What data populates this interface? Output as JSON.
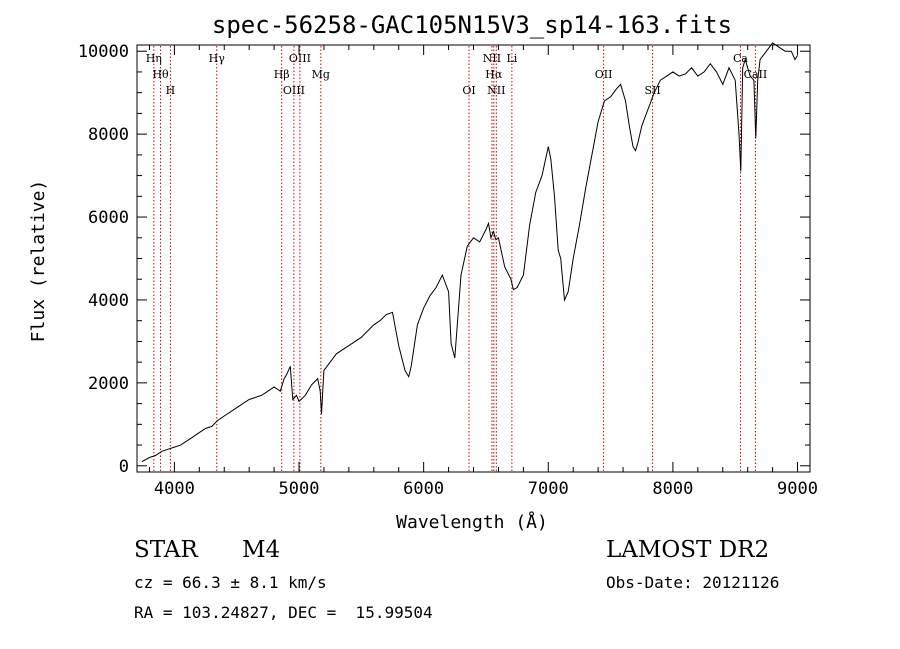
{
  "chart_data": {
    "type": "line",
    "title": "spec-56258-GAC105N15V3_sp14-163.fits",
    "xlabel": "Wavelength (Å)",
    "ylabel": "Flux (relative)",
    "xlim": [
      3700,
      9100
    ],
    "ylim": [
      -150,
      10150
    ],
    "x_ticks": [
      4000,
      5000,
      6000,
      7000,
      8000,
      9000
    ],
    "y_ticks": [
      0,
      2000,
      4000,
      6000,
      8000,
      10000
    ],
    "x_tick_labels": [
      "4000",
      "5000",
      "6000",
      "7000",
      "8000",
      "9000"
    ],
    "y_tick_labels": [
      "0",
      "2000",
      "4000",
      "6000",
      "8000",
      "10000"
    ],
    "grid": false,
    "line_color": "#000000",
    "marker_color": "#cc0000",
    "series": [
      {
        "x": [
          3740,
          3800,
          3850,
          3900,
          3950,
          4000,
          4050,
          4100,
          4150,
          4200,
          4250,
          4300,
          4350,
          4400,
          4450,
          4500,
          4550,
          4600,
          4650,
          4700,
          4750,
          4800,
          4850,
          4880,
          4900,
          4930,
          4950,
          4980,
          5000,
          5050,
          5100,
          5150,
          5170,
          5180,
          5200,
          5250,
          5300,
          5350,
          5400,
          5450,
          5500,
          5550,
          5600,
          5650,
          5700,
          5750,
          5800,
          5850,
          5880,
          5900,
          5950,
          6000,
          6050,
          6100,
          6150,
          6200,
          6220,
          6250,
          6300,
          6350,
          6400,
          6450,
          6500,
          6520,
          6540,
          6560,
          6580,
          6600,
          6650,
          6700,
          6720,
          6750,
          6800,
          6850,
          6900,
          6950,
          7000,
          7020,
          7050,
          7080,
          7100,
          7130,
          7160,
          7200,
          7250,
          7300,
          7350,
          7400,
          7450,
          7500,
          7550,
          7580,
          7620,
          7650,
          7680,
          7700,
          7720,
          7750,
          7800,
          7850,
          7900,
          7950,
          8000,
          8050,
          8100,
          8150,
          8200,
          8250,
          8300,
          8350,
          8400,
          8450,
          8500,
          8530,
          8545,
          8560,
          8580,
          8620,
          8650,
          8665,
          8680,
          8700,
          8750,
          8800,
          8850,
          8900,
          8950,
          8980,
          9000
        ],
        "y": [
          100,
          200,
          250,
          350,
          400,
          450,
          500,
          600,
          700,
          800,
          900,
          950,
          1100,
          1200,
          1300,
          1400,
          1500,
          1600,
          1650,
          1700,
          1800,
          1900,
          1800,
          2100,
          2200,
          2400,
          1600,
          1700,
          1550,
          1700,
          1950,
          2100,
          1800,
          1250,
          2300,
          2500,
          2700,
          2800,
          2900,
          3000,
          3100,
          3250,
          3400,
          3500,
          3650,
          3700,
          2900,
          2300,
          2150,
          2400,
          3400,
          3800,
          4100,
          4300,
          4600,
          4200,
          2950,
          2600,
          4600,
          5300,
          5500,
          5400,
          5700,
          5850,
          5500,
          5650,
          5450,
          5500,
          4800,
          4500,
          4250,
          4300,
          4600,
          5800,
          6600,
          7000,
          7700,
          7400,
          6500,
          5200,
          5000,
          4000,
          4200,
          5000,
          5800,
          6700,
          7500,
          8300,
          8800,
          8900,
          9100,
          9200,
          8800,
          8200,
          7700,
          7600,
          7800,
          8200,
          8600,
          9000,
          9300,
          9400,
          9500,
          9400,
          9450,
          9600,
          9400,
          9500,
          9700,
          9500,
          9200,
          9600,
          9300,
          8000,
          7100,
          9600,
          9800,
          9400,
          9300,
          7900,
          9300,
          9800,
          10000,
          10200,
          10100,
          10000,
          10000,
          9800,
          9900
        ]
      }
    ],
    "line_markers": [
      {
        "x": 3835,
        "labels": [
          "Hη"
        ]
      },
      {
        "x": 3889,
        "labels": [
          "Hθ"
        ]
      },
      {
        "x": 3968,
        "labels": [
          "H"
        ]
      },
      {
        "x": 4340,
        "labels": [
          "Hγ"
        ]
      },
      {
        "x": 4861,
        "labels": [
          "Hβ"
        ]
      },
      {
        "x": 4959,
        "labels": [
          "OIII"
        ]
      },
      {
        "x": 5007,
        "labels": [
          "OIII"
        ]
      },
      {
        "x": 5175,
        "labels": [
          "Mg"
        ]
      },
      {
        "x": 6364,
        "labels": [
          "OI"
        ]
      },
      {
        "x": 6548,
        "labels": [
          "NII"
        ]
      },
      {
        "x": 6563,
        "labels": [
          "Hα"
        ]
      },
      {
        "x": 6583,
        "labels": [
          "NII"
        ]
      },
      {
        "x": 6708,
        "labels": [
          "Li"
        ]
      },
      {
        "x": 7444,
        "labels": [
          "OII"
        ]
      },
      {
        "x": 7837,
        "labels": [
          "SII"
        ]
      },
      {
        "x": 8542,
        "labels": [
          "Ca"
        ]
      },
      {
        "x": 8662,
        "labels": [
          "CaII"
        ]
      }
    ]
  },
  "info": {
    "class_label": "STAR",
    "subclass_label": "M4",
    "redshift_text": "cz = 66.3 ± 8.1 km/s",
    "coords_text": "RA = 103.24827, DEC =  15.99504",
    "survey_text": "LAMOST DR2",
    "obs_date_text": "Obs-Date: 20121126"
  }
}
